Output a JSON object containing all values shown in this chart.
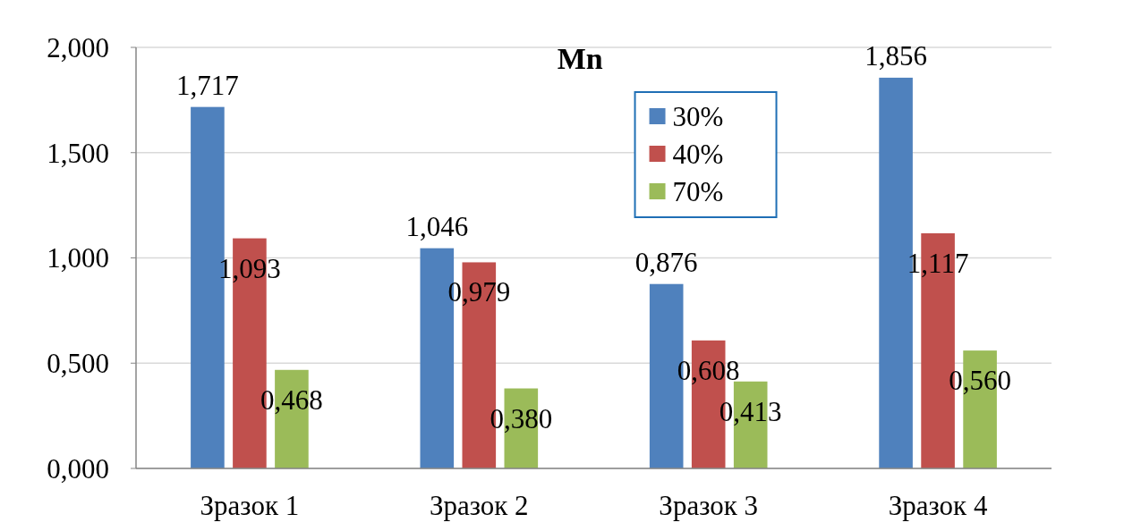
{
  "chart_data": {
    "type": "bar",
    "title": "Mn",
    "categories": [
      "Зразок 1",
      "Зразок 2",
      "Зразок 3",
      "Зразок 4"
    ],
    "series": [
      {
        "name": "30%",
        "color": "#4f81bd",
        "values": [
          1.717,
          1.046,
          0.876,
          1.856
        ],
        "value_labels": [
          "1,717",
          "1,046",
          "0,876",
          "1,856"
        ]
      },
      {
        "name": "40%",
        "color": "#c0504d",
        "values": [
          1.093,
          0.979,
          0.608,
          1.117
        ],
        "value_labels": [
          "1,093",
          "0,979",
          "0,608",
          "1,117"
        ]
      },
      {
        "name": "70%",
        "color": "#9bbb59",
        "values": [
          0.468,
          0.38,
          0.413,
          0.56
        ],
        "value_labels": [
          "0,468",
          "0,380",
          "0,413",
          "0,560"
        ]
      }
    ],
    "ylim": [
      0,
      2
    ],
    "yticks": [
      {
        "value": 0,
        "label": "0,000"
      },
      {
        "value": 0.5,
        "label": "0,500"
      },
      {
        "value": 1,
        "label": "1,000"
      },
      {
        "value": 1.5,
        "label": "1,500"
      },
      {
        "value": 2,
        "label": "2,000"
      }
    ],
    "grid": "y",
    "legend": "top"
  }
}
